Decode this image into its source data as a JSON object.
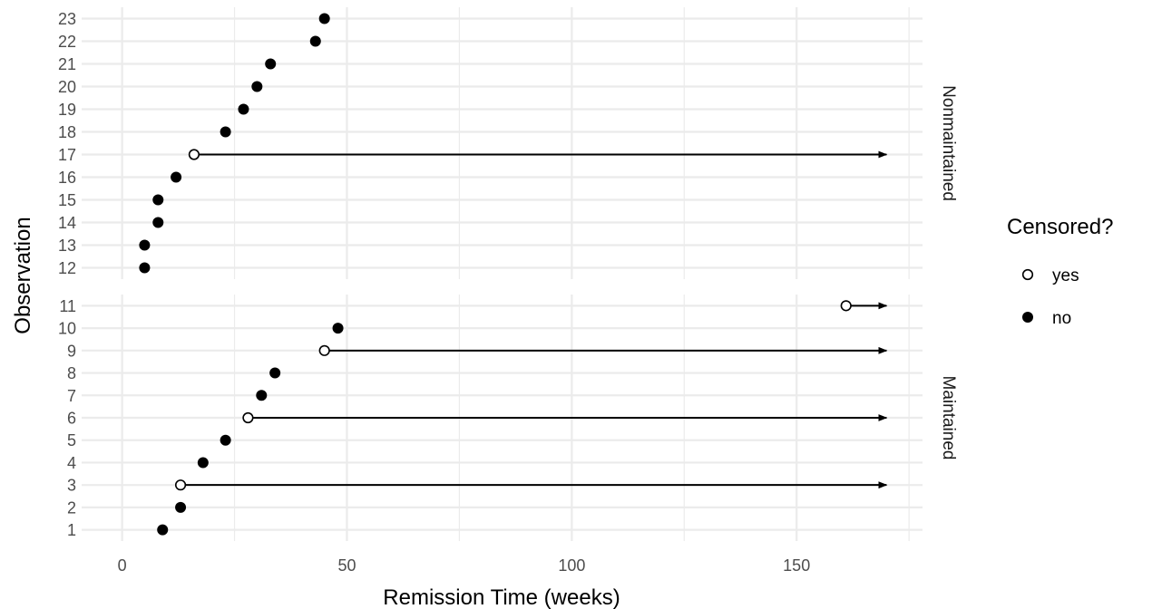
{
  "chart_data": {
    "type": "scatter",
    "xlabel": "Remission Time (weeks)",
    "ylabel": "Observation",
    "xlim": [
      -9,
      178
    ],
    "x_ticks": [
      0,
      50,
      100,
      150
    ],
    "x_minor": [
      25,
      75,
      125,
      175
    ],
    "arrow_end": 170,
    "grid": true,
    "legend": {
      "title": "Censored?",
      "position": "right",
      "items": [
        {
          "label": "yes",
          "key": "yes"
        },
        {
          "label": "no",
          "key": "no"
        }
      ]
    },
    "facets": [
      {
        "name": "Nonmaintained",
        "ylim": [
          11.5,
          23.5
        ],
        "y_ticks": [
          12,
          13,
          14,
          15,
          16,
          17,
          18,
          19,
          20,
          21,
          22,
          23
        ],
        "points": [
          {
            "obs": 12,
            "time": 5,
            "censored": false
          },
          {
            "obs": 13,
            "time": 5,
            "censored": false
          },
          {
            "obs": 14,
            "time": 8,
            "censored": false
          },
          {
            "obs": 15,
            "time": 8,
            "censored": false
          },
          {
            "obs": 16,
            "time": 12,
            "censored": false
          },
          {
            "obs": 17,
            "time": 16,
            "censored": true
          },
          {
            "obs": 18,
            "time": 23,
            "censored": false
          },
          {
            "obs": 19,
            "time": 27,
            "censored": false
          },
          {
            "obs": 20,
            "time": 30,
            "censored": false
          },
          {
            "obs": 21,
            "time": 33,
            "censored": false
          },
          {
            "obs": 22,
            "time": 43,
            "censored": false
          },
          {
            "obs": 23,
            "time": 45,
            "censored": false
          }
        ]
      },
      {
        "name": "Maintained",
        "ylim": [
          0.5,
          11.5
        ],
        "y_ticks": [
          1,
          2,
          3,
          4,
          5,
          6,
          7,
          8,
          9,
          10,
          11
        ],
        "points": [
          {
            "obs": 1,
            "time": 9,
            "censored": false
          },
          {
            "obs": 2,
            "time": 13,
            "censored": false
          },
          {
            "obs": 3,
            "time": 13,
            "censored": true
          },
          {
            "obs": 4,
            "time": 18,
            "censored": false
          },
          {
            "obs": 5,
            "time": 23,
            "censored": false
          },
          {
            "obs": 6,
            "time": 28,
            "censored": true
          },
          {
            "obs": 7,
            "time": 31,
            "censored": false
          },
          {
            "obs": 8,
            "time": 34,
            "censored": false
          },
          {
            "obs": 9,
            "time": 45,
            "censored": true
          },
          {
            "obs": 10,
            "time": 48,
            "censored": false
          },
          {
            "obs": 11,
            "time": 161,
            "censored": true
          }
        ]
      }
    ]
  }
}
